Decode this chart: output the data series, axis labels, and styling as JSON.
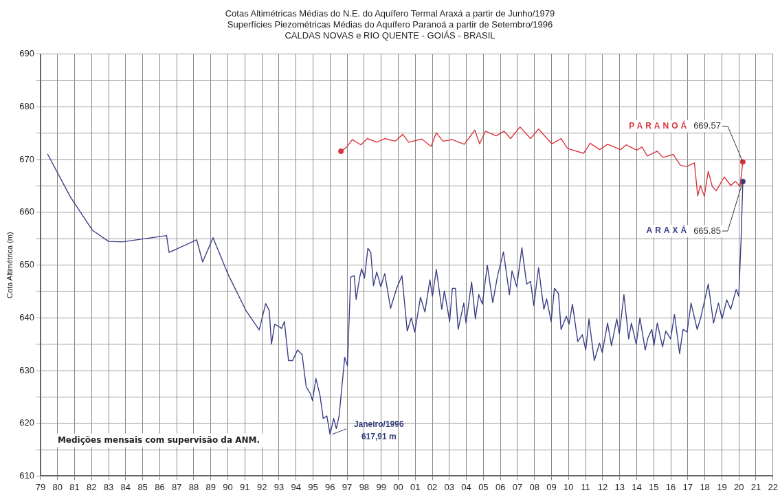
{
  "chart_data": {
    "type": "line",
    "title": "Cotas Altimétricas Médias do N.E. do Aquífero Termal Araxá a partir de Junho/1979",
    "subtitle": "Superfícies Piezométricas  Médias do Aquífero Paranoá a partir de Setembro/1996\nCALDAS NOVAS  e RIO  QUENTE  - GOIÁS  - BRASIL",
    "ylabel": "Cota Altimétrica (m)",
    "series": [
      {
        "name": "PARANOÁ",
        "color": "#d9363e",
        "x": [
          1996.64,
          1996.95,
          1997.31,
          1997.81,
          1998.19,
          1998.74,
          1999.21,
          1999.83,
          2000.27,
          2000.61,
          2001.39,
          2001.93,
          2002.24,
          2002.63,
          2003.18,
          2003.88,
          2004.5,
          2004.78,
          2005.12,
          2005.75,
          2006.21,
          2006.6,
          2007.15,
          2007.77,
          2008.24,
          2009.02,
          2009.56,
          2009.95,
          2010.88,
          2011.27,
          2011.82,
          2012.29,
          2013.06,
          2013.38,
          2014.0,
          2014.31,
          2014.62,
          2015.21,
          2015.55,
          2016.15,
          2016.57,
          2016.96,
          2017.39,
          2017.58,
          2017.74,
          2017.97,
          2018.2,
          2018.44,
          2018.67,
          2019.14,
          2019.52,
          2019.79,
          2020.07,
          2020.23
        ],
        "values": [
          671.6,
          672.3,
          673.8,
          672.8,
          674.0,
          673.3,
          674.0,
          673.5,
          674.8,
          673.3,
          673.9,
          672.5,
          675.1,
          673.5,
          673.8,
          672.9,
          675.6,
          673.0,
          675.4,
          674.5,
          675.4,
          674.0,
          676.2,
          674.0,
          675.8,
          673.0,
          674.0,
          672.1,
          671.2,
          673.1,
          671.9,
          672.9,
          671.9,
          672.8,
          671.8,
          672.4,
          670.7,
          671.6,
          670.4,
          671.0,
          668.9,
          668.7,
          669.4,
          663.1,
          665.1,
          663.1,
          667.8,
          664.9,
          664.1,
          666.7,
          665.1,
          665.9,
          664.9,
          669.57
        ],
        "value_labels": [
          null,
          null,
          null,
          null,
          null,
          null,
          null,
          null,
          null,
          null,
          null,
          null,
          null,
          null,
          null,
          null,
          null,
          null,
          null,
          null,
          null,
          null,
          null,
          null,
          null,
          null,
          null,
          null,
          null,
          null,
          null,
          null,
          null,
          null,
          null,
          null,
          null,
          null,
          null,
          null,
          null,
          null,
          null,
          null,
          null,
          null,
          null,
          null,
          null,
          null,
          null,
          null,
          null,
          "669.57"
        ]
      },
      {
        "name": "ARAXÁ",
        "color": "#3b3f86",
        "x": [
          1979.41,
          1980.76,
          1982.05,
          1983.0,
          1983.8,
          1986.4,
          1986.55,
          1988.17,
          1988.52,
          1989.13,
          1990.02,
          1991.06,
          1991.84,
          1992.06,
          1992.22,
          1992.43,
          1992.56,
          1992.75,
          1993.16,
          1993.32,
          1993.56,
          1993.8,
          1994.09,
          1994.36,
          1994.6,
          1994.85,
          1994.97,
          1995.17,
          1995.41,
          1995.6,
          1995.81,
          1996.0,
          1996.21,
          1996.37,
          1996.53,
          1996.86,
          1997.02,
          1997.21,
          1997.42,
          1997.53,
          1997.74,
          1997.85,
          1998.02,
          1998.22,
          1998.39,
          1998.55,
          1998.74,
          1998.98,
          1999.21,
          1999.55,
          1999.91,
          2000.22,
          2000.53,
          2000.77,
          2000.97,
          2001.31,
          2001.57,
          2001.86,
          2002.01,
          2002.24,
          2002.56,
          2002.71,
          2003.02,
          2003.18,
          2003.36,
          2003.52,
          2003.85,
          2003.98,
          2004.31,
          2004.53,
          2004.73,
          2004.94,
          2005.23,
          2005.55,
          2005.83,
          2006.18,
          2006.53,
          2006.68,
          2006.96,
          2007.26,
          2007.54,
          2007.77,
          2007.96,
          2008.24,
          2008.55,
          2008.71,
          2008.98,
          2009.17,
          2009.41,
          2009.56,
          2009.87,
          2010.03,
          2010.23,
          2010.54,
          2010.81,
          2011.01,
          2011.2,
          2011.51,
          2011.82,
          2011.98,
          2012.29,
          2012.52,
          2012.83,
          2012.98,
          2013.25,
          2013.53,
          2013.69,
          2013.97,
          2014.19,
          2014.5,
          2014.66,
          2014.89,
          2015.01,
          2015.21,
          2015.52,
          2015.71,
          2015.99,
          2016.22,
          2016.52,
          2016.72,
          2016.96,
          2017.19,
          2017.55,
          2017.74,
          2017.92,
          2018.2,
          2018.51,
          2018.8,
          2019.01,
          2019.29,
          2019.52,
          2019.84,
          2019.99,
          2020.13,
          2020.23
        ],
        "values": [
          671.1,
          662.9,
          656.6,
          654.5,
          654.4,
          655.6,
          652.4,
          654.8,
          650.6,
          655.2,
          648.2,
          641.4,
          637.7,
          640.6,
          642.7,
          641.4,
          635.0,
          638.8,
          638.0,
          639.3,
          631.9,
          631.9,
          633.9,
          633.0,
          626.9,
          625.6,
          624.3,
          628.5,
          625.3,
          620.9,
          621.4,
          617.9,
          620.9,
          619.0,
          621.4,
          632.5,
          630.9,
          647.7,
          648.0,
          643.5,
          647.7,
          649.3,
          647.5,
          653.2,
          652.4,
          646.1,
          648.7,
          645.9,
          648.4,
          641.8,
          645.6,
          648.0,
          637.5,
          640.0,
          637.3,
          643.9,
          641.1,
          647.2,
          644.1,
          649.2,
          641.6,
          645.1,
          639.3,
          645.6,
          645.6,
          637.8,
          642.8,
          639.0,
          646.8,
          639.8,
          644.4,
          642.6,
          650.0,
          642.9,
          647.9,
          652.5,
          644.4,
          648.9,
          645.9,
          653.3,
          646.4,
          646.9,
          642.3,
          649.5,
          641.6,
          643.6,
          639.3,
          645.6,
          644.6,
          637.8,
          640.3,
          638.8,
          642.6,
          635.5,
          636.8,
          633.9,
          639.8,
          631.9,
          635.2,
          633.4,
          639.0,
          634.7,
          639.8,
          637.0,
          644.4,
          636.0,
          639.0,
          635.0,
          640.0,
          633.9,
          636.2,
          637.8,
          634.7,
          639.0,
          634.5,
          637.5,
          636.0,
          640.6,
          633.2,
          637.8,
          637.3,
          642.8,
          637.8,
          639.8,
          642.3,
          646.4,
          639.0,
          642.8,
          639.8,
          643.4,
          641.6,
          645.4,
          644.1,
          655.0,
          665.85
        ],
        "value_labels": [
          null,
          null,
          null,
          null,
          null,
          null,
          null,
          null,
          null,
          null,
          null,
          null,
          null,
          null,
          null,
          null,
          null,
          null,
          null,
          null,
          null,
          null,
          null,
          null,
          null,
          null,
          null,
          null,
          null,
          null,
          null,
          null,
          null,
          null,
          null,
          null,
          null,
          null,
          null,
          null,
          null,
          null,
          null,
          null,
          null,
          null,
          null,
          null,
          null,
          null,
          null,
          null,
          null,
          null,
          null,
          null,
          null,
          null,
          null,
          null,
          null,
          null,
          null,
          null,
          null,
          null,
          null,
          null,
          null,
          null,
          null,
          null,
          null,
          null,
          null,
          null,
          null,
          null,
          null,
          null,
          null,
          null,
          null,
          null,
          null,
          null,
          null,
          null,
          null,
          null,
          null,
          null,
          null,
          null,
          null,
          null,
          null,
          null,
          null,
          null,
          null,
          null,
          null,
          null,
          null,
          null,
          null,
          null,
          null,
          null,
          null,
          null,
          null,
          null,
          null,
          null,
          null,
          null,
          null,
          null,
          null,
          null,
          null,
          null,
          null,
          null,
          null,
          null,
          null,
          null,
          null,
          null,
          null,
          null,
          "665.85"
        ]
      }
    ],
    "xlim": [
      1979,
      2022
    ],
    "xticks": [
      {
        "value": 1979,
        "label": "79"
      },
      {
        "value": 1980,
        "label": "80"
      },
      {
        "value": 1981,
        "label": "81"
      },
      {
        "value": 1982,
        "label": "82"
      },
      {
        "value": 1983,
        "label": "83"
      },
      {
        "value": 1984,
        "label": "84"
      },
      {
        "value": 1985,
        "label": "85"
      },
      {
        "value": 1986,
        "label": "86"
      },
      {
        "value": 1987,
        "label": "87"
      },
      {
        "value": 1988,
        "label": "88"
      },
      {
        "value": 1989,
        "label": "89"
      },
      {
        "value": 1990,
        "label": "90"
      },
      {
        "value": 1991,
        "label": "91"
      },
      {
        "value": 1992,
        "label": "92"
      },
      {
        "value": 1993,
        "label": "93"
      },
      {
        "value": 1994,
        "label": "94"
      },
      {
        "value": 1995,
        "label": "95"
      },
      {
        "value": 1996,
        "label": "96"
      },
      {
        "value": 1997,
        "label": "97"
      },
      {
        "value": 1998,
        "label": "98"
      },
      {
        "value": 1999,
        "label": "99"
      },
      {
        "value": 2000,
        "label": "00"
      },
      {
        "value": 2001,
        "label": "01"
      },
      {
        "value": 2002,
        "label": "02"
      },
      {
        "value": 2003,
        "label": "03"
      },
      {
        "value": 2004,
        "label": "04"
      },
      {
        "value": 2005,
        "label": "05"
      },
      {
        "value": 2006,
        "label": "06"
      },
      {
        "value": 2007,
        "label": "07"
      },
      {
        "value": 2008,
        "label": "08"
      },
      {
        "value": 2009,
        "label": "09"
      },
      {
        "value": 2010,
        "label": "10"
      },
      {
        "value": 2011,
        "label": "11"
      },
      {
        "value": 2012,
        "label": "12"
      },
      {
        "value": 2013,
        "label": "13"
      },
      {
        "value": 2014,
        "label": "14"
      },
      {
        "value": 2015,
        "label": "15"
      },
      {
        "value": 2016,
        "label": "16"
      },
      {
        "value": 2017,
        "label": "17"
      },
      {
        "value": 2018,
        "label": "18"
      },
      {
        "value": 2019,
        "label": "19"
      },
      {
        "value": 2020,
        "label": "20"
      },
      {
        "value": 2021,
        "label": "21"
      },
      {
        "value": 2022,
        "label": "22"
      }
    ],
    "ylim": [
      610,
      690
    ],
    "yticks": [
      610,
      {
        "value": 615,
        "label": null
      },
      620,
      {
        "value": 625,
        "label": null
      },
      630,
      {
        "value": 635,
        "label": null
      },
      640,
      {
        "value": 645,
        "label": null
      },
      650,
      {
        "value": 655,
        "label": null
      },
      660,
      {
        "value": 665,
        "label": null
      },
      670,
      {
        "value": 675,
        "label": null
      },
      680,
      {
        "value": 685,
        "label": null
      },
      690
    ],
    "grid": true,
    "line_style": "solid",
    "annotations": [
      {
        "text": "Janeiro/1996\n617,91 m",
        "x": 1996.0,
        "y": 617.91
      },
      "Medições mensais com supervisão da ANM."
    ]
  }
}
